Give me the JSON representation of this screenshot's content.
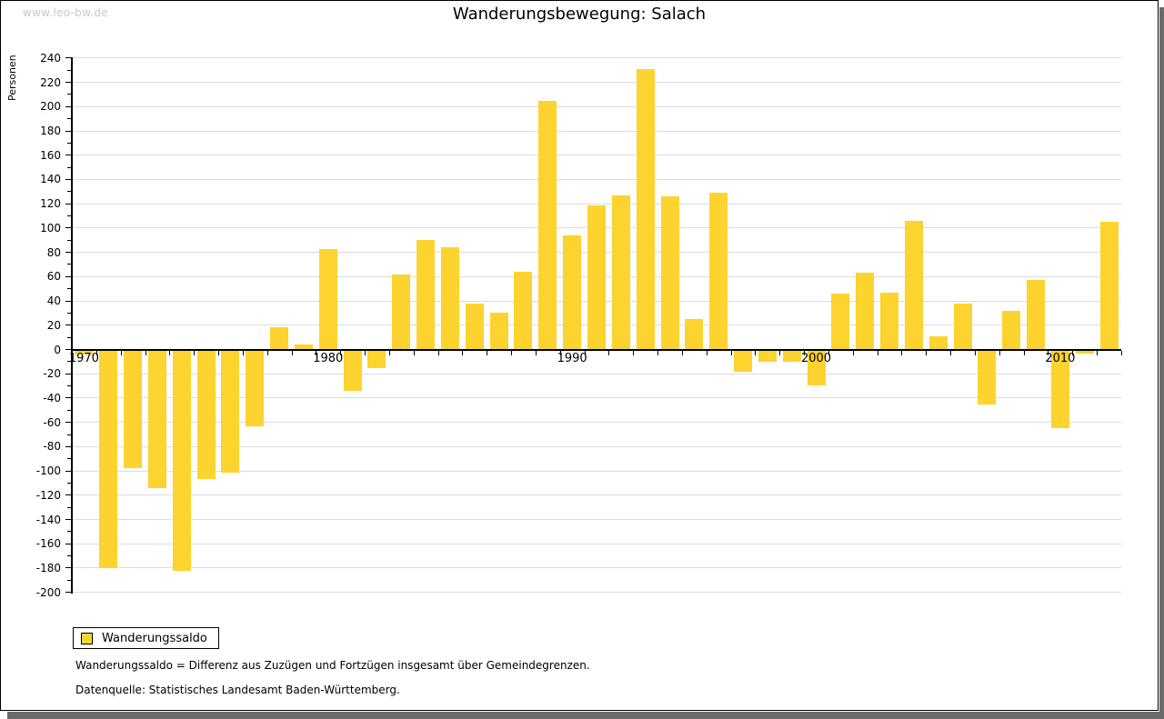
{
  "watermark": "www.leo-bw.de",
  "title": "Wanderungsbewegung: Salach",
  "y_axis_title": "Personen",
  "legend": {
    "label": "Wanderungssaldo"
  },
  "footnotes": [
    "Wanderungssaldo = Differenz aus Zuzügen und Fortzügen insgesamt über Gemeindegrenzen.",
    "Datenquelle: Statistisches Landesamt Baden-Württemberg."
  ],
  "colors": {
    "bar": "#FCD32F",
    "grid": "#DCDCDC",
    "axis": "#000000",
    "watermark": "#C8C8C8",
    "shadow": "#6B6B6B"
  },
  "chart_data": {
    "type": "bar",
    "title": "Wanderungsbewegung: Salach",
    "xlabel": "",
    "ylabel": "Personen",
    "series_name": "Wanderungssaldo",
    "x": [
      1970,
      1971,
      1972,
      1973,
      1974,
      1975,
      1976,
      1977,
      1978,
      1979,
      1980,
      1981,
      1982,
      1983,
      1984,
      1985,
      1986,
      1987,
      1988,
      1989,
      1990,
      1991,
      1992,
      1993,
      1994,
      1995,
      1996,
      1997,
      1998,
      1999,
      2000,
      2001,
      2002,
      2003,
      2004,
      2005,
      2006,
      2007,
      2008,
      2009,
      2010,
      2011,
      2012
    ],
    "values": [
      -4,
      -180,
      -97,
      -114,
      -182,
      -106,
      -101,
      -63,
      18,
      4,
      83,
      -34,
      -15,
      62,
      90,
      84,
      38,
      30,
      64,
      205,
      94,
      119,
      127,
      231,
      126,
      25,
      129,
      -18,
      -10,
      -10,
      -29,
      46,
      63,
      47,
      106,
      11,
      38,
      -45,
      32,
      57,
      -64,
      -3,
      105
    ],
    "ylim": [
      -200,
      240
    ],
    "ytick_step": 20,
    "ytick_labels": [
      240,
      220,
      200,
      180,
      160,
      140,
      120,
      100,
      80,
      60,
      40,
      20,
      0,
      -20,
      -40,
      -60,
      -80,
      -100,
      -120,
      -140,
      -160,
      -180,
      -200
    ],
    "xtick_labels": [
      1970,
      1980,
      1990,
      2000,
      2010
    ],
    "grid": true,
    "legend_position": "bottom-left"
  }
}
